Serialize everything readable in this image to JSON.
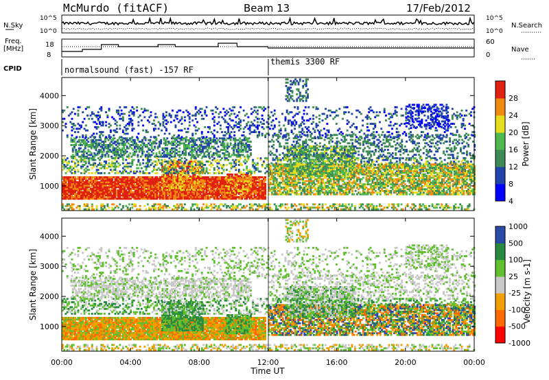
{
  "header": {
    "station": "McMurdo (fitACF)",
    "beam": "Beam 13",
    "date": "17/Feb/2012"
  },
  "noise_panel": {
    "left_label": "N.Sky",
    "right_label": "N.Search",
    "left_ticks": [
      "10^5",
      "10^0"
    ],
    "right_ticks": [
      "10^5",
      "10^0"
    ]
  },
  "freq_panel": {
    "left_label_1": "Freq.",
    "left_label_2": "[MHz]",
    "right_label": "Nave",
    "left_ticks": [
      "18",
      "8"
    ],
    "right_ticks": [
      "60",
      "0"
    ]
  },
  "cpid_panel": {
    "label": "CPID",
    "modes": [
      "normalsound (fast) -157 RF",
      "themis 3300 RF"
    ]
  },
  "axes": {
    "ylabel": "Slant Range [km]",
    "xlabel": "Time UT",
    "xticks": [
      "00:00",
      "04:00",
      "08:00",
      "12:00",
      "16:00",
      "20:00",
      "00:00"
    ],
    "yticks": [
      "1000",
      "2000",
      "3000",
      "4000"
    ]
  },
  "colors": {
    "power": [
      "#0000ff",
      "#2244aa",
      "#3d8a55",
      "#4fb84f",
      "#e8dc1e",
      "#f08a10",
      "#e02010"
    ],
    "velocity": [
      "#ff0000",
      "#ff6a00",
      "#f2a000",
      "#c8c8c8",
      "#60c030",
      "#2a8a40",
      "#2a4aa8"
    ]
  },
  "chart_data": [
    {
      "type": "heatmap",
      "title": "Power",
      "colorbar_label": "Power [dB]",
      "colorbar_ticks": [
        "28",
        "24",
        "20",
        "16",
        "12",
        "8",
        "4"
      ],
      "xlabel": "Time UT",
      "ylabel": "Slant Range [km]",
      "xlim_hours": [
        0,
        24
      ],
      "ylim_km": [
        180,
        4600
      ]
    },
    {
      "type": "heatmap",
      "title": "Velocity",
      "colorbar_label": "Velocity [m s-1]",
      "colorbar_ticks": [
        "1000",
        "500",
        "100",
        "25",
        "-25",
        "-100",
        "-500",
        "-1000"
      ],
      "xlabel": "Time UT",
      "ylabel": "Slant Range [km]",
      "xlim_hours": [
        0,
        24
      ],
      "ylim_km": [
        180,
        4600
      ]
    }
  ]
}
